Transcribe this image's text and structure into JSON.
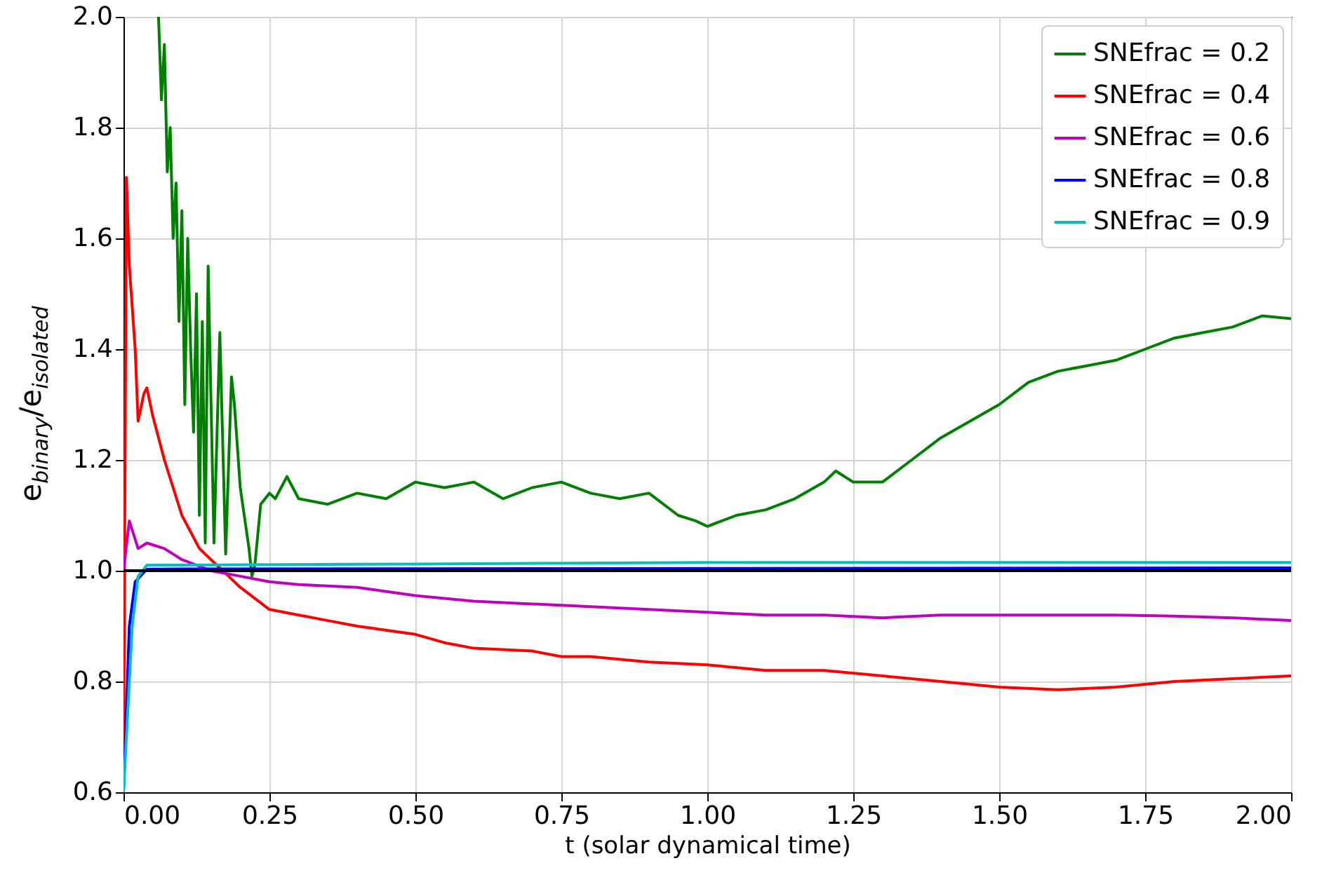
{
  "chart_data": {
    "type": "line",
    "xlabel": "t (solar dynamical time)",
    "ylabel": "e$_{binary}$/e$_{isolated}$",
    "xlim": [
      0,
      2
    ],
    "ylim": [
      0.6,
      2.0
    ],
    "xticks": [
      {
        "value": 0,
        "label": "0.00"
      },
      0.25,
      {
        "value": 0.5,
        "label": "0.50"
      },
      0.75,
      {
        "value": 1,
        "label": "1.00"
      },
      1.25,
      {
        "value": 1.5,
        "label": "1.50"
      },
      1.75,
      {
        "value": 2,
        "label": "2.00"
      }
    ],
    "yticks": [
      0.6,
      0.8,
      {
        "value": 1,
        "label": "1.0"
      },
      1.2,
      1.4,
      1.6,
      1.8,
      {
        "value": 2,
        "label": "2.0"
      }
    ],
    "grid": true,
    "legend": "top right",
    "line_style": "solid",
    "marker": "none",
    "ref_lines": [
      {
        "axis": "y",
        "value": 1,
        "color": "#000000"
      }
    ],
    "series": [
      {
        "name": "SNEfrac = 0.2",
        "color": "#008000",
        "x": [
          0.06,
          0.065,
          0.07,
          0.075,
          0.08,
          0.085,
          0.09,
          0.095,
          0.1,
          0.105,
          0.11,
          0.115,
          0.12,
          0.125,
          0.13,
          0.135,
          0.14,
          0.145,
          0.155,
          0.165,
          0.175,
          0.185,
          0.19,
          0.2,
          0.215,
          0.22,
          0.225,
          0.235,
          0.25,
          0.26,
          0.28,
          0.3,
          0.35,
          0.4,
          0.45,
          0.5,
          0.55,
          0.6,
          0.65,
          0.7,
          0.75,
          0.8,
          0.85,
          0.9,
          0.95,
          0.98,
          1.0,
          1.05,
          1.1,
          1.15,
          1.2,
          1.22,
          1.25,
          1.3,
          1.35,
          1.4,
          1.45,
          1.5,
          1.55,
          1.6,
          1.65,
          1.7,
          1.75,
          1.8,
          1.85,
          1.9,
          1.95,
          2.0
        ],
        "values": [
          2.0,
          1.85,
          1.95,
          1.72,
          1.8,
          1.6,
          1.7,
          1.45,
          1.65,
          1.3,
          1.6,
          1.4,
          1.25,
          1.5,
          1.1,
          1.45,
          1.05,
          1.55,
          1.05,
          1.43,
          1.03,
          1.35,
          1.3,
          1.15,
          1.04,
          0.99,
          1.01,
          1.12,
          1.14,
          1.13,
          1.17,
          1.13,
          1.12,
          1.14,
          1.13,
          1.16,
          1.15,
          1.16,
          1.13,
          1.15,
          1.16,
          1.14,
          1.13,
          1.14,
          1.1,
          1.09,
          1.08,
          1.1,
          1.11,
          1.13,
          1.16,
          1.18,
          1.16,
          1.16,
          1.2,
          1.24,
          1.27,
          1.3,
          1.34,
          1.36,
          1.37,
          1.38,
          1.4,
          1.42,
          1.43,
          1.44,
          1.46,
          1.455
        ]
      },
      {
        "name": "SNEfrac = 0.4",
        "color": "#ff0000",
        "x": [
          0,
          0.005,
          0.01,
          0.02,
          0.025,
          0.035,
          0.04,
          0.05,
          0.07,
          0.1,
          0.13,
          0.15,
          0.18,
          0.2,
          0.25,
          0.3,
          0.35,
          0.4,
          0.5,
          0.55,
          0.6,
          0.7,
          0.75,
          0.8,
          0.9,
          1.0,
          1.1,
          1.2,
          1.3,
          1.4,
          1.5,
          1.6,
          1.7,
          1.8,
          1.9,
          2.0
        ],
        "values": [
          0.6,
          1.71,
          1.55,
          1.4,
          1.27,
          1.32,
          1.33,
          1.28,
          1.2,
          1.1,
          1.04,
          1.02,
          0.99,
          0.97,
          0.93,
          0.92,
          0.91,
          0.9,
          0.885,
          0.87,
          0.86,
          0.855,
          0.845,
          0.845,
          0.835,
          0.83,
          0.82,
          0.82,
          0.81,
          0.8,
          0.79,
          0.785,
          0.79,
          0.8,
          0.805,
          0.81
        ]
      },
      {
        "name": "SNEfrac = 0.6",
        "color": "#bf00bf",
        "x": [
          0,
          0.01,
          0.025,
          0.04,
          0.07,
          0.1,
          0.15,
          0.2,
          0.25,
          0.3,
          0.4,
          0.5,
          0.6,
          0.7,
          0.8,
          0.9,
          1.0,
          1.1,
          1.2,
          1.3,
          1.4,
          1.5,
          1.6,
          1.7,
          1.8,
          1.9,
          2.0
        ],
        "values": [
          1.0,
          1.09,
          1.04,
          1.05,
          1.04,
          1.02,
          1.0,
          0.99,
          0.98,
          0.975,
          0.97,
          0.955,
          0.945,
          0.94,
          0.935,
          0.93,
          0.925,
          0.92,
          0.92,
          0.915,
          0.92,
          0.92,
          0.92,
          0.92,
          0.918,
          0.915,
          0.91
        ]
      },
      {
        "name": "SNEfrac = 0.8",
        "color": "#0000ff",
        "x": [
          0,
          0.01,
          0.02,
          0.04,
          2.0
        ],
        "values": [
          0.6,
          0.9,
          0.98,
          1.003,
          1.005
        ]
      },
      {
        "name": "SNEfrac = 0.9",
        "color": "#00bfbf",
        "x": [
          0,
          0.015,
          0.025,
          0.04,
          0.5,
          1.0,
          2.0
        ],
        "values": [
          0.6,
          0.9,
          0.99,
          1.01,
          1.012,
          1.015,
          1.015
        ]
      }
    ]
  }
}
